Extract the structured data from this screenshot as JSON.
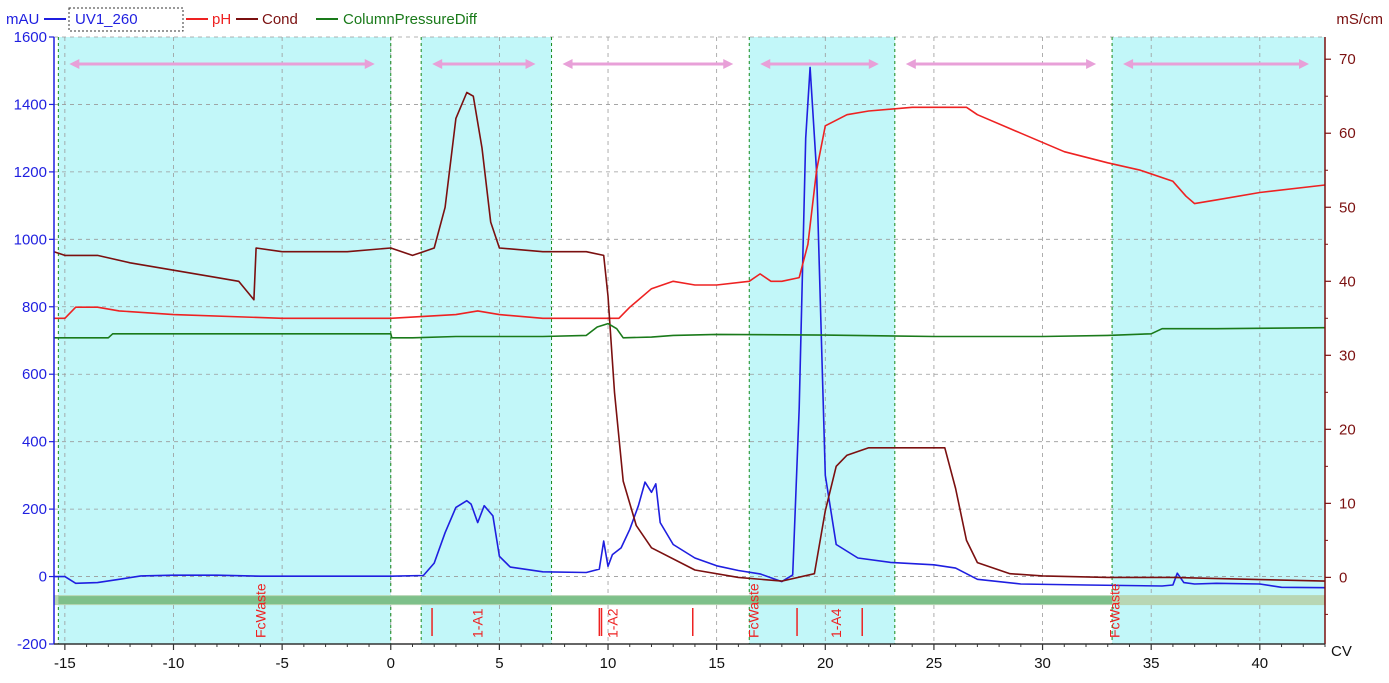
{
  "chart_data": {
    "type": "line",
    "x_unit_label": "CV",
    "y_left_unit": "mAU",
    "y_right_unit": "mS/cm",
    "xlim": [
      -15.5,
      43
    ],
    "y_left_lim": [
      -200,
      1600
    ],
    "y_right_lim": [
      -9,
      73
    ],
    "x_ticks": [
      -15,
      -10,
      -5,
      0,
      5,
      10,
      15,
      20,
      25,
      30,
      35,
      40
    ],
    "y_left_ticks": [
      -200,
      0,
      200,
      400,
      600,
      800,
      1000,
      1200,
      1400,
      1600
    ],
    "y_right_ticks": [
      0,
      10,
      20,
      30,
      40,
      50,
      60,
      70
    ],
    "grid": true,
    "legend": [
      "UV1_260",
      "pH",
      "Cond",
      "ColumnPressureDiff"
    ],
    "series": [
      {
        "name": "UV1_260",
        "color": "#1f1fe0",
        "axis": "left",
        "points": [
          [
            -15.5,
            0
          ],
          [
            -15,
            0
          ],
          [
            -14.5,
            -20
          ],
          [
            -13.5,
            -18
          ],
          [
            -12.5,
            -8
          ],
          [
            -11.5,
            2
          ],
          [
            -10,
            4
          ],
          [
            -8,
            4
          ],
          [
            -6,
            1
          ],
          [
            -3,
            1
          ],
          [
            0,
            1
          ],
          [
            1.5,
            3
          ],
          [
            2,
            40
          ],
          [
            2.5,
            130
          ],
          [
            3,
            205
          ],
          [
            3.5,
            225
          ],
          [
            3.7,
            215
          ],
          [
            4,
            160
          ],
          [
            4.3,
            210
          ],
          [
            4.7,
            180
          ],
          [
            5,
            60
          ],
          [
            5.5,
            28
          ],
          [
            7,
            14
          ],
          [
            9,
            12
          ],
          [
            9.6,
            22
          ],
          [
            9.8,
            105
          ],
          [
            10,
            30
          ],
          [
            10.2,
            65
          ],
          [
            10.6,
            85
          ],
          [
            11,
            140
          ],
          [
            11.4,
            210
          ],
          [
            11.7,
            280
          ],
          [
            12,
            250
          ],
          [
            12.2,
            275
          ],
          [
            12.4,
            160
          ],
          [
            13,
            95
          ],
          [
            14,
            55
          ],
          [
            15,
            32
          ],
          [
            16,
            18
          ],
          [
            17,
            8
          ],
          [
            18,
            -15
          ],
          [
            18.5,
            5
          ],
          [
            18.8,
            500
          ],
          [
            19.1,
            1300
          ],
          [
            19.3,
            1510
          ],
          [
            19.6,
            1200
          ],
          [
            20,
            300
          ],
          [
            20.5,
            95
          ],
          [
            21.5,
            55
          ],
          [
            23,
            42
          ],
          [
            25,
            35
          ],
          [
            26,
            25
          ],
          [
            27,
            -8
          ],
          [
            29,
            -22
          ],
          [
            32,
            -25
          ],
          [
            35.5,
            -28
          ],
          [
            36,
            -25
          ],
          [
            36.2,
            10
          ],
          [
            36.5,
            -18
          ],
          [
            37,
            -22
          ],
          [
            38,
            -20
          ],
          [
            40,
            -22
          ],
          [
            41,
            -32
          ],
          [
            43,
            -33
          ]
        ]
      },
      {
        "name": "pH",
        "color": "#ee2222",
        "axis": "right",
        "points": [
          [
            -15.5,
            35
          ],
          [
            -15,
            35
          ],
          [
            -14.5,
            36.5
          ],
          [
            -13.5,
            36.5
          ],
          [
            -12.5,
            36
          ],
          [
            -10,
            35.5
          ],
          [
            -5,
            35
          ],
          [
            0,
            35
          ],
          [
            3,
            35.5
          ],
          [
            4,
            36
          ],
          [
            5,
            35.5
          ],
          [
            7,
            35
          ],
          [
            9,
            35
          ],
          [
            10.5,
            35
          ],
          [
            11,
            36.5
          ],
          [
            12,
            39
          ],
          [
            13,
            40
          ],
          [
            14,
            39.5
          ],
          [
            15,
            39.5
          ],
          [
            16.5,
            40
          ],
          [
            17,
            41
          ],
          [
            17.5,
            40
          ],
          [
            18,
            40
          ],
          [
            18.8,
            40.5
          ],
          [
            19.2,
            45
          ],
          [
            19.6,
            55
          ],
          [
            20,
            61
          ],
          [
            21,
            62.5
          ],
          [
            22,
            63
          ],
          [
            24,
            63.5
          ],
          [
            25,
            63.5
          ],
          [
            26.5,
            63.5
          ],
          [
            27,
            62.5
          ],
          [
            29,
            60
          ],
          [
            31,
            57.5
          ],
          [
            33,
            56
          ],
          [
            34.5,
            55
          ],
          [
            36,
            53.5
          ],
          [
            36.6,
            51.5
          ],
          [
            37,
            50.5
          ],
          [
            38,
            51
          ],
          [
            40,
            52
          ],
          [
            43,
            53
          ]
        ]
      },
      {
        "name": "Cond",
        "color": "#7b1010",
        "axis": "right",
        "points": [
          [
            -15.5,
            44
          ],
          [
            -15,
            43.5
          ],
          [
            -14.5,
            43.5
          ],
          [
            -13.5,
            43.5
          ],
          [
            -12,
            42.5
          ],
          [
            -10,
            41.5
          ],
          [
            -8,
            40.5
          ],
          [
            -7,
            40
          ],
          [
            -6.3,
            37.5
          ],
          [
            -6.2,
            44.5
          ],
          [
            -5,
            44
          ],
          [
            -2,
            44
          ],
          [
            0,
            44.5
          ],
          [
            1,
            43.5
          ],
          [
            1.5,
            44
          ],
          [
            2,
            44.5
          ],
          [
            2.5,
            50
          ],
          [
            3,
            62
          ],
          [
            3.5,
            65.5
          ],
          [
            3.8,
            65
          ],
          [
            4.2,
            58
          ],
          [
            4.6,
            48
          ],
          [
            5,
            44.5
          ],
          [
            7,
            44
          ],
          [
            8,
            44
          ],
          [
            9,
            44
          ],
          [
            9.8,
            43.5
          ],
          [
            10,
            38
          ],
          [
            10.3,
            25
          ],
          [
            10.7,
            13
          ],
          [
            11.3,
            7
          ],
          [
            12,
            4
          ],
          [
            14,
            1
          ],
          [
            16,
            0
          ],
          [
            18,
            -0.5
          ],
          [
            19.5,
            0.5
          ],
          [
            20,
            9
          ],
          [
            20.5,
            15
          ],
          [
            21,
            16.5
          ],
          [
            22,
            17.5
          ],
          [
            24,
            17.5
          ],
          [
            25.5,
            17.5
          ],
          [
            26,
            12
          ],
          [
            26.5,
            5
          ],
          [
            27,
            2
          ],
          [
            28.5,
            0.5
          ],
          [
            30,
            0.2
          ],
          [
            33,
            0
          ],
          [
            36,
            0
          ],
          [
            40,
            -0.3
          ],
          [
            43,
            -0.5
          ]
        ]
      },
      {
        "name": "ColumnPressureDiff",
        "color": "#1a7a1a",
        "axis": "left",
        "points": [
          [
            -15.5,
            708
          ],
          [
            -13,
            708
          ],
          [
            -12.8,
            720
          ],
          [
            -5,
            720
          ],
          [
            0,
            720
          ],
          [
            0.05,
            708
          ],
          [
            1,
            708
          ],
          [
            3,
            712
          ],
          [
            7,
            712
          ],
          [
            9,
            715
          ],
          [
            9.5,
            740
          ],
          [
            10,
            750
          ],
          [
            10.4,
            735
          ],
          [
            10.7,
            708
          ],
          [
            12,
            710
          ],
          [
            13,
            715
          ],
          [
            15,
            718
          ],
          [
            20,
            716
          ],
          [
            25,
            712
          ],
          [
            30,
            712
          ],
          [
            33,
            715
          ],
          [
            35,
            720
          ],
          [
            35.5,
            735
          ],
          [
            38,
            735
          ],
          [
            43,
            738
          ]
        ]
      }
    ],
    "fractions": [
      "FcWaste",
      "1-A1",
      "1-A2",
      "FcWaste",
      "1-A4",
      "FcWaste"
    ],
    "fraction_x": [
      -6,
      4,
      10.2,
      16.7,
      20.5,
      33.3
    ],
    "fraction_ticks_x": [
      1.9,
      9.6,
      9.7,
      13.9,
      18.7,
      21.7
    ],
    "boundaries_x": [
      -15.3,
      0,
      1.4,
      7.4,
      16.5,
      23.2,
      33.2
    ]
  },
  "colors": {
    "band": "#c2f7f9",
    "arrow": "#e8a0d8",
    "axis_left": "#1f1fe0",
    "axis_right": "#7b1010",
    "fraction_text": "#ee2222",
    "bar": "#7ec08a",
    "bar_light": "#b8d6b4"
  },
  "legend_labels": {
    "left_unit": "mAU",
    "uv": "UV1_260",
    "ph": "pH",
    "cond": "Cond",
    "cpd": "ColumnPressureDiff",
    "right_unit": "mS/cm",
    "x_unit": "CV"
  }
}
